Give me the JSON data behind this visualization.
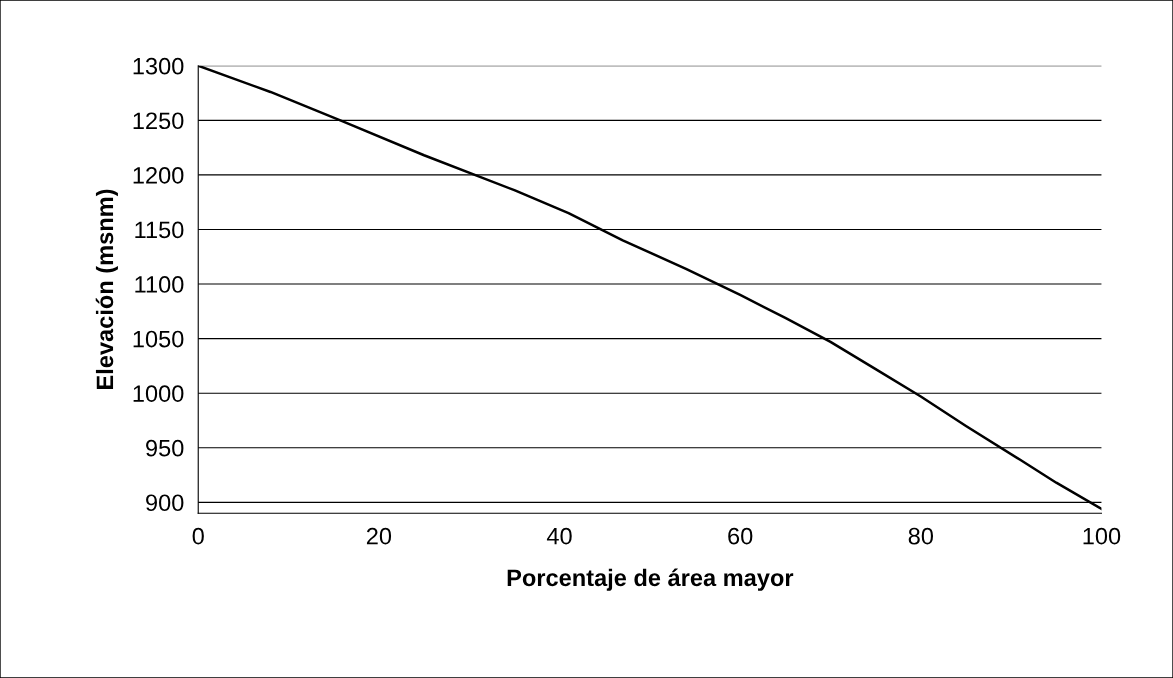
{
  "chart_data": {
    "type": "line",
    "xlabel": "Porcentaje de área mayor",
    "ylabel": "Elevación (msnm)",
    "x": [
      0,
      8,
      16,
      25,
      35,
      41,
      47,
      54,
      60,
      65,
      70,
      75,
      80,
      85,
      91,
      95,
      100
    ],
    "series": [
      {
        "color": "#000000",
        "values": [
          1300,
          1276,
          1249,
          1218,
          1186,
          1165,
          1140,
          1114,
          1090,
          1069,
          1047,
          1022,
          997,
          970,
          939,
          918,
          894
        ]
      }
    ],
    "xlim": [
      0,
      100
    ],
    "xticks": [
      0,
      20,
      40,
      60,
      80,
      100
    ],
    "ylim": [
      890,
      1300
    ],
    "yticks": [
      900,
      950,
      1000,
      1050,
      1100,
      1150,
      1200,
      1250,
      1300
    ],
    "grid": "y",
    "marker": "none",
    "line_style": "solid",
    "legend": false
  }
}
